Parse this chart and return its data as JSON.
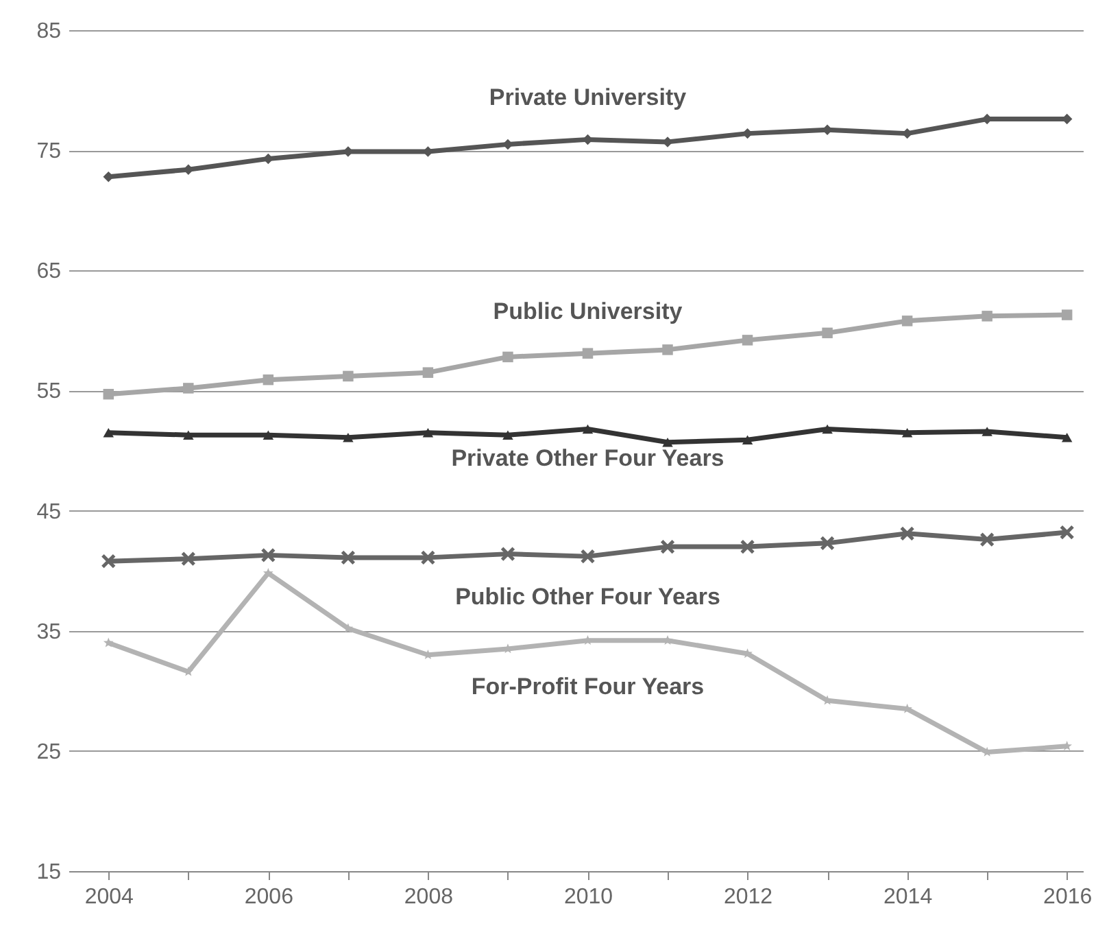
{
  "chart_data": {
    "type": "line",
    "x": [
      2004,
      2005,
      2006,
      2007,
      2008,
      2009,
      2010,
      2011,
      2012,
      2013,
      2014,
      2015,
      2016
    ],
    "series": [
      {
        "name": "Private University",
        "color": "#555555",
        "marker": "diamond",
        "values": [
          72.8,
          73.4,
          74.3,
          74.9,
          74.9,
          75.5,
          75.9,
          75.7,
          76.4,
          76.7,
          76.4,
          77.6,
          77.6
        ]
      },
      {
        "name": "Public University",
        "color": "#a6a6a6",
        "marker": "square",
        "values": [
          54.7,
          55.2,
          55.9,
          56.2,
          56.5,
          57.8,
          58.1,
          58.4,
          59.2,
          59.8,
          60.8,
          61.2,
          61.3
        ]
      },
      {
        "name": "Private Other Four Years",
        "color": "#333333",
        "marker": "triangle",
        "values": [
          51.5,
          51.3,
          51.3,
          51.1,
          51.5,
          51.3,
          51.8,
          50.7,
          50.9,
          51.8,
          51.5,
          51.6,
          51.1
        ]
      },
      {
        "name": "Public  Other Four Years",
        "color": "#666666",
        "marker": "cross",
        "values": [
          40.8,
          41.0,
          41.3,
          41.1,
          41.1,
          41.4,
          41.2,
          42.0,
          42.0,
          42.3,
          43.1,
          42.6,
          43.2
        ]
      },
      {
        "name": "For-Profit Four Years",
        "color": "#b3b3b3",
        "marker": "star",
        "values": [
          34.0,
          31.6,
          39.8,
          35.2,
          33.0,
          33.5,
          34.2,
          34.2,
          33.1,
          29.2,
          28.5,
          24.9,
          25.4
        ]
      }
    ],
    "xlim": [
      2003.5,
      2016.2
    ],
    "xticks": [
      2004,
      {
        "value": 2005,
        "label": null
      },
      2006,
      {
        "value": 2007,
        "label": null
      },
      2008,
      {
        "value": 2009,
        "label": null
      },
      2010,
      {
        "value": 2011,
        "label": null
      },
      2012,
      {
        "value": 2013,
        "label": null
      },
      2014,
      {
        "value": 2015,
        "label": null
      },
      2016
    ],
    "ylim": [
      15,
      85
    ],
    "yticks": [
      15,
      25,
      35,
      45,
      55,
      65,
      75,
      85
    ],
    "grid": "y",
    "line_style": "solid"
  }
}
